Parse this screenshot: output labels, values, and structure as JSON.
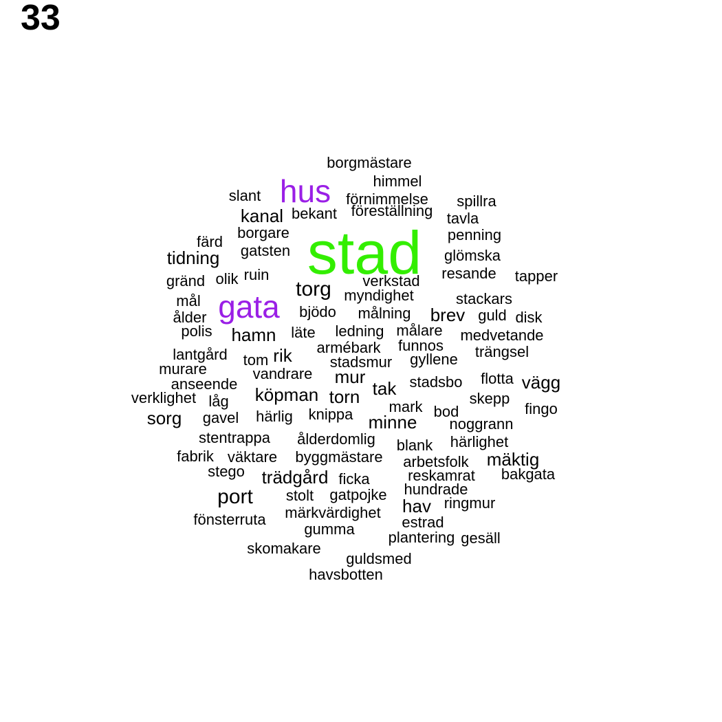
{
  "page": {
    "number": "33"
  },
  "colors": {
    "primary": "#33ee00",
    "secondary": "#9a1fe6",
    "default": "#000000"
  },
  "words": [
    "stad",
    "gata",
    "hus",
    "torg",
    "port",
    "kanal",
    "tidning",
    "brev",
    "hamn",
    "rik",
    "mur",
    "tak",
    "köpman",
    "torn",
    "vägg",
    "sorg",
    "minne",
    "hav",
    "mäktig",
    "trädgård",
    "borgmästare",
    "himmel",
    "slant",
    "förnimmelse",
    "spillra",
    "bekant",
    "föreställning",
    "tavla",
    "borgare",
    "penning",
    "färd",
    "gatsten",
    "glömska",
    "ruin",
    "resande",
    "tapper",
    "gränd",
    "olik",
    "verkstad",
    "myndighet",
    "stackars",
    "mål",
    "bjödo",
    "målning",
    "guld",
    "disk",
    "ålder",
    "polis",
    "läte",
    "ledning",
    "målare",
    "medvetande",
    "armébark",
    "funnos",
    "lantgård",
    "trängsel",
    "tom",
    "stadsmur",
    "gyllene",
    "murare",
    "vandrare",
    "anseende",
    "stadsbo",
    "flotta",
    "verklighet",
    "låg",
    "skepp",
    "mark",
    "fingo",
    "gavel",
    "härlig",
    "knippa",
    "bod",
    "noggrann",
    "stentrappa",
    "ålderdomlig",
    "blank",
    "härlighet",
    "fabrik",
    "väktare",
    "byggmästare",
    "arbetsfolk",
    "stego",
    "ficka",
    "reskamrat",
    "bakgata",
    "stolt",
    "gatpojke",
    "hundrade",
    "ringmur",
    "fönsterruta",
    "märkvärdighet",
    "estrad",
    "gumma",
    "plantering",
    "gesäll",
    "skomakare",
    "guldsmed",
    "havsbotten"
  ]
}
